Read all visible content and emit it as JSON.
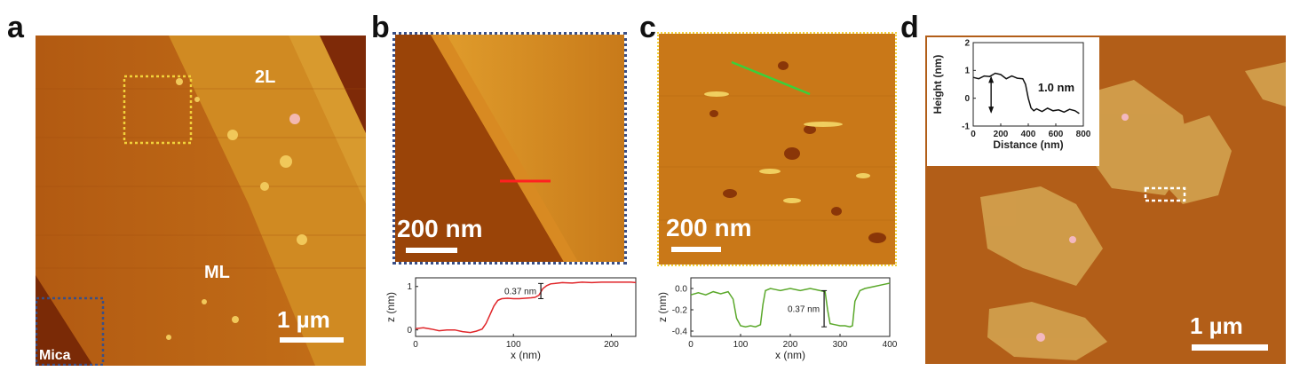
{
  "panels": {
    "a": {
      "letter": "a",
      "labels": {
        "layer_2l": "2L",
        "layer_ml": "ML",
        "substrate": "Mica"
      },
      "scale_bar": "1 µm"
    },
    "b": {
      "letter": "b",
      "scale_bar": "200 nm",
      "profile": {
        "xlabel": "x (nm)",
        "ylabel": "z (nm)",
        "annotation": "0.37 nm"
      }
    },
    "c": {
      "letter": "c",
      "scale_bar": "200 nm",
      "profile": {
        "xlabel": "x (nm)",
        "ylabel": "z (nm)",
        "annotation": "0.37 nm"
      }
    },
    "d": {
      "letter": "d",
      "scale_bar": "1 µm",
      "inset": {
        "xlabel": "Distance (nm)",
        "ylabel": "Height (nm)",
        "annotation": "1.0 nm"
      }
    }
  },
  "colors": {
    "profile_b": "#e0262a",
    "profile_c": "#5aa82a",
    "profile_d": "#111111",
    "frame_b": "#3a4f86",
    "frame_c": "#f2d23a",
    "afm_dark": "#8a3a08",
    "afm_mid": "#c26a14",
    "afm_light": "#e8a838"
  },
  "chart_data": [
    {
      "panel": "b",
      "type": "line",
      "xlabel": "x (nm)",
      "ylabel": "z (nm)",
      "xlim": [
        0,
        225
      ],
      "ylim": [
        -0.15,
        1.2
      ],
      "xticks": [
        0,
        100,
        200
      ],
      "yticks": [
        0,
        1
      ],
      "series": [
        {
          "x": [
            0,
            8,
            16,
            24,
            32,
            40,
            48,
            56,
            62,
            68,
            72,
            76,
            80,
            84,
            88,
            94,
            100,
            106,
            112,
            118,
            122,
            126,
            130,
            134,
            138,
            142,
            146,
            150,
            160,
            170,
            180,
            190,
            200,
            210,
            220,
            225
          ],
          "y": [
            0.03,
            0.05,
            0.02,
            -0.02,
            0.0,
            0.0,
            -0.04,
            -0.06,
            -0.03,
            0.02,
            0.15,
            0.35,
            0.55,
            0.68,
            0.72,
            0.73,
            0.72,
            0.72,
            0.73,
            0.74,
            0.75,
            0.8,
            0.95,
            1.02,
            1.06,
            1.07,
            1.08,
            1.09,
            1.08,
            1.1,
            1.09,
            1.1,
            1.1,
            1.1,
            1.1,
            1.09
          ]
        }
      ],
      "annotation": "0.37 nm"
    },
    {
      "panel": "c",
      "type": "line",
      "xlabel": "x (nm)",
      "ylabel": "z (nm)",
      "xlim": [
        0,
        400
      ],
      "ylim": [
        -0.45,
        0.1
      ],
      "xticks": [
        0,
        100,
        200,
        300,
        400
      ],
      "yticks": [
        0.0,
        -0.2,
        -0.4
      ],
      "series": [
        {
          "x": [
            0,
            15,
            30,
            45,
            60,
            75,
            85,
            92,
            100,
            110,
            120,
            130,
            140,
            145,
            150,
            160,
            170,
            180,
            200,
            220,
            240,
            260,
            270,
            275,
            280,
            290,
            300,
            310,
            320,
            325,
            330,
            340,
            350,
            370,
            390,
            400
          ],
          "y": [
            -0.06,
            -0.04,
            -0.06,
            -0.03,
            -0.05,
            -0.03,
            -0.1,
            -0.28,
            -0.35,
            -0.36,
            -0.35,
            -0.36,
            -0.34,
            -0.15,
            -0.02,
            0.0,
            -0.01,
            -0.02,
            0.0,
            -0.02,
            0.0,
            -0.02,
            -0.03,
            -0.2,
            -0.33,
            -0.34,
            -0.35,
            -0.35,
            -0.36,
            -0.35,
            -0.12,
            -0.02,
            0.0,
            0.02,
            0.04,
            0.05
          ]
        }
      ],
      "annotation": "0.37 nm"
    },
    {
      "panel": "d",
      "type": "line",
      "xlabel": "Distance (nm)",
      "ylabel": "Height (nm)",
      "xlim": [
        0,
        800
      ],
      "ylim": [
        -1,
        2
      ],
      "xticks": [
        0,
        200,
        400,
        600,
        800
      ],
      "yticks": [
        -1,
        0,
        1,
        2
      ],
      "series": [
        {
          "x": [
            0,
            40,
            80,
            120,
            160,
            200,
            240,
            280,
            320,
            360,
            380,
            400,
            420,
            440,
            460,
            500,
            540,
            580,
            620,
            660,
            700,
            740,
            770
          ],
          "y": [
            0.75,
            0.7,
            0.8,
            0.78,
            0.9,
            0.85,
            0.7,
            0.8,
            0.72,
            0.7,
            0.5,
            0.0,
            -0.35,
            -0.45,
            -0.38,
            -0.48,
            -0.36,
            -0.45,
            -0.42,
            -0.5,
            -0.4,
            -0.45,
            -0.55
          ]
        }
      ],
      "annotation": "1.0 nm"
    }
  ]
}
